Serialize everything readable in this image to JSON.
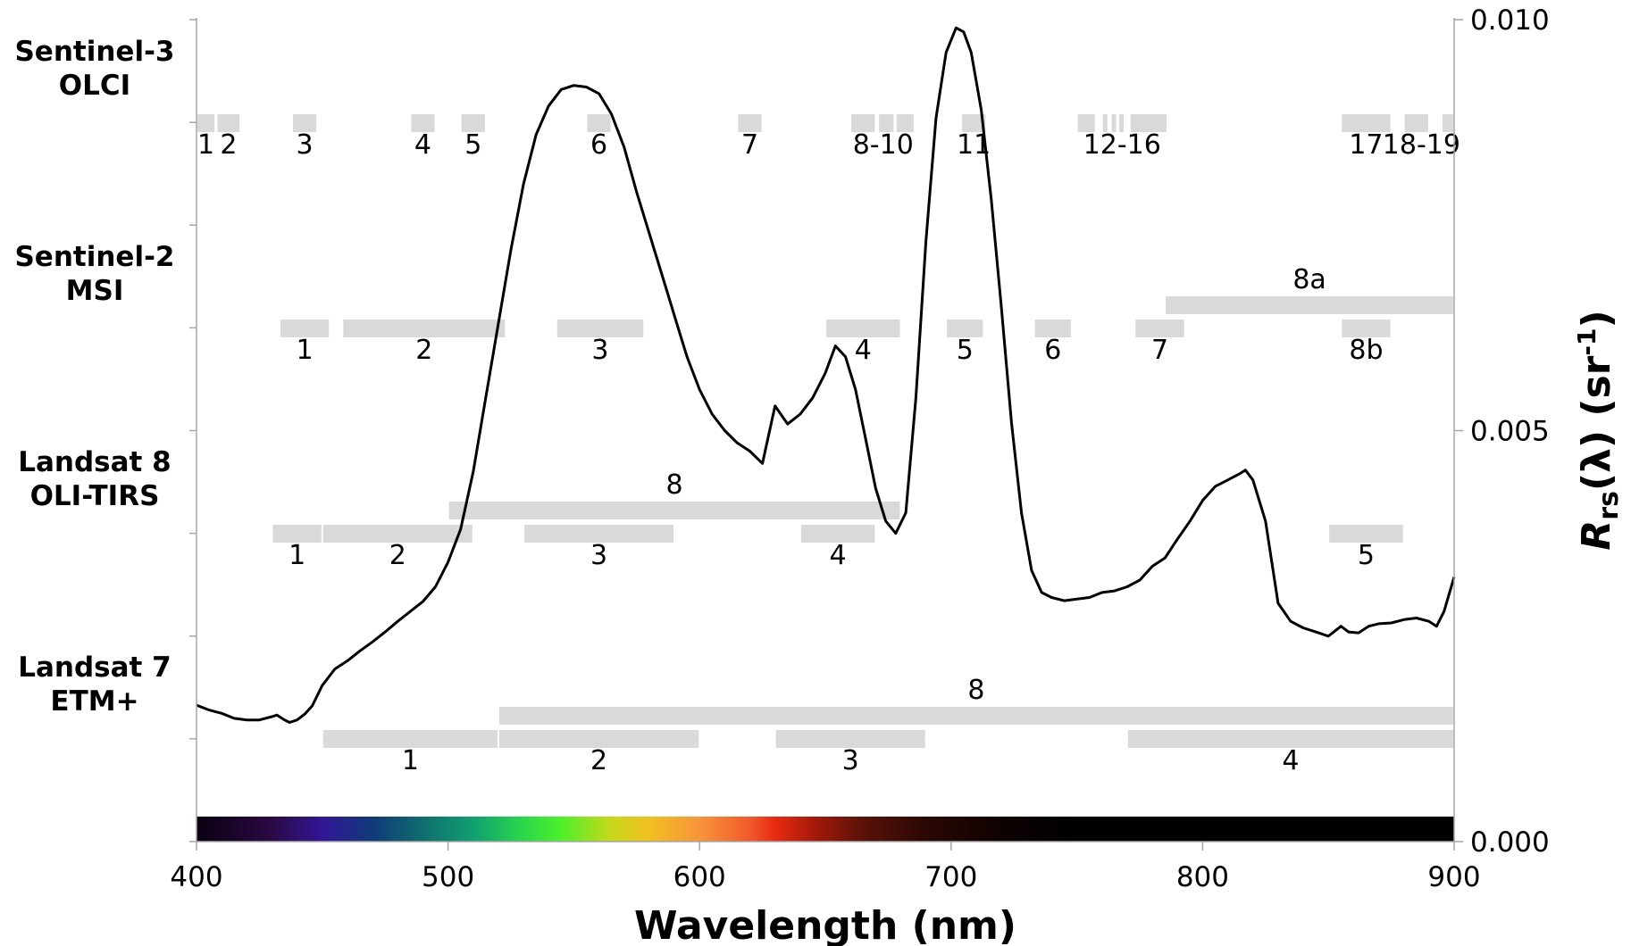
{
  "chart_data": {
    "type": "line",
    "title": "",
    "xlabel": "Wavelength (nm)",
    "ylabel_main": "R",
    "ylabel_sub": "rs",
    "ylabel_rest": "(λ) (sr",
    "ylabel_sup": "-1",
    "ylabel_end": ")",
    "xlim": [
      400,
      900
    ],
    "ylim": [
      0.0,
      0.01
    ],
    "x_ticks": [
      "400",
      "500",
      "600",
      "700",
      "800",
      "900"
    ],
    "y_ticks": [
      "0.000",
      "0.005",
      "0.010"
    ],
    "grid": false,
    "legend": "none",
    "series": [
      {
        "x": [
          400,
          405,
          410,
          415,
          420,
          425,
          430,
          432,
          435,
          437,
          440,
          443,
          446,
          450,
          455,
          460,
          465,
          470,
          475,
          480,
          485,
          490,
          495,
          500,
          505,
          510,
          515,
          520,
          525,
          530,
          535,
          540,
          545,
          550,
          555,
          560,
          565,
          570,
          575,
          580,
          585,
          590,
          595,
          600,
          605,
          610,
          615,
          620,
          625,
          630,
          635,
          640,
          645,
          650,
          654,
          658,
          662,
          666,
          670,
          674,
          678,
          682,
          686,
          690,
          694,
          698,
          702,
          705,
          708,
          712,
          716,
          720,
          724,
          728,
          732,
          736,
          740,
          745,
          750,
          755,
          760,
          765,
          770,
          775,
          780,
          785,
          790,
          795,
          800,
          805,
          810,
          815,
          817,
          820,
          825,
          830,
          835,
          840,
          845,
          850,
          855,
          858,
          862,
          866,
          870,
          875,
          880,
          885,
          890,
          893,
          896,
          900
        ],
        "y": [
          0.00166,
          0.0016,
          0.00156,
          0.0015,
          0.00148,
          0.00148,
          0.00152,
          0.00154,
          0.00148,
          0.00145,
          0.00148,
          0.00155,
          0.00165,
          0.0019,
          0.0021,
          0.0022,
          0.00232,
          0.00243,
          0.00255,
          0.00268,
          0.0028,
          0.00292,
          0.0031,
          0.0034,
          0.0038,
          0.0045,
          0.0054,
          0.0063,
          0.0072,
          0.008,
          0.0086,
          0.00895,
          0.00915,
          0.0092,
          0.00918,
          0.0091,
          0.00885,
          0.00845,
          0.0079,
          0.0074,
          0.0069,
          0.0064,
          0.0059,
          0.0055,
          0.0052,
          0.005,
          0.00485,
          0.00475,
          0.0046,
          0.0053,
          0.00508,
          0.0052,
          0.0054,
          0.0057,
          0.00603,
          0.0059,
          0.0055,
          0.0049,
          0.0043,
          0.0039,
          0.00375,
          0.004,
          0.0054,
          0.0073,
          0.0088,
          0.0096,
          0.0099,
          0.00985,
          0.0096,
          0.0089,
          0.0078,
          0.0065,
          0.0051,
          0.004,
          0.0033,
          0.00303,
          0.00297,
          0.00293,
          0.00295,
          0.00297,
          0.00303,
          0.00305,
          0.0031,
          0.00318,
          0.00335,
          0.00345,
          0.00368,
          0.0039,
          0.00415,
          0.00432,
          0.0044,
          0.00448,
          0.00452,
          0.0044,
          0.0039,
          0.0029,
          0.00268,
          0.0026,
          0.00255,
          0.0025,
          0.00262,
          0.00255,
          0.00254,
          0.00262,
          0.00265,
          0.00266,
          0.0027,
          0.00272,
          0.00268,
          0.00262,
          0.0028,
          0.00322
        ]
      }
    ],
    "sensors": [
      {
        "name_line1": "Sentinel-3",
        "name_line2": "OLCI",
        "bands": [
          {
            "label": "1",
            "range": [
              400,
              407.5
            ]
          },
          {
            "label": "2",
            "range": [
              408,
              417.5
            ]
          },
          {
            "label": "3",
            "range": [
              438,
              448
            ]
          },
          {
            "label": "4",
            "range": [
              485,
              495
            ]
          },
          {
            "label": "5",
            "range": [
              505,
              515
            ]
          },
          {
            "label": "6",
            "range": [
              555,
              565
            ]
          },
          {
            "label": "7",
            "range": [
              615,
              625
            ]
          },
          {
            "label": "",
            "range": [
              660,
              670
            ]
          },
          {
            "label": "",
            "range": [
              671,
              677.5
            ]
          },
          {
            "label": "",
            "range": [
              678,
              685.5
            ]
          },
          {
            "label": "11",
            "range": [
              704,
              714
            ]
          },
          {
            "label": "",
            "range": [
              750,
              757.5
            ]
          },
          {
            "label": "",
            "range": [
              760,
              762.5
            ]
          },
          {
            "label": "",
            "range": [
              763.5,
              766
            ]
          },
          {
            "label": "",
            "range": [
              766.5,
              769
            ]
          },
          {
            "label": "",
            "range": [
              771,
              786
            ]
          },
          {
            "label": "17",
            "range": [
              855,
              875
            ]
          },
          {
            "label": "",
            "range": [
              880,
              890
            ]
          },
          {
            "label": "",
            "range": [
              895,
              905
            ]
          }
        ],
        "group_labels": [
          {
            "label": "8-10",
            "at": 673
          },
          {
            "label": "12-16",
            "at": 768
          },
          {
            "label": "18-19",
            "at": 887
          }
        ]
      },
      {
        "name_line1": "Sentinel-2",
        "name_line2": "MSI",
        "bands": [
          {
            "label": "1",
            "range": [
              433,
              453
            ]
          },
          {
            "label": "2",
            "range": [
              458,
              523
            ]
          },
          {
            "label": "3",
            "range": [
              543,
              578
            ]
          },
          {
            "label": "4",
            "range": [
              650,
              680
            ]
          },
          {
            "label": "5",
            "range": [
              698,
              713
            ]
          },
          {
            "label": "6",
            "range": [
              733,
              748
            ]
          },
          {
            "label": "7",
            "range": [
              773,
              793
            ]
          },
          {
            "label": "8a",
            "range": [
              785,
              900
            ],
            "row": "upper"
          },
          {
            "label": "8b",
            "range": [
              855,
              875
            ]
          }
        ]
      },
      {
        "name_line1": "Landsat 8",
        "name_line2": "OLI-TIRS",
        "bands": [
          {
            "label": "1",
            "range": [
              430,
              450
            ]
          },
          {
            "label": "2",
            "range": [
              450,
              510
            ]
          },
          {
            "label": "3",
            "range": [
              530,
              590
            ]
          },
          {
            "label": "4",
            "range": [
              640,
              670
            ]
          },
          {
            "label": "8",
            "range": [
              500,
              680
            ],
            "row": "upper"
          },
          {
            "label": "5",
            "range": [
              850,
              880
            ]
          }
        ]
      },
      {
        "name_line1": "Landsat 7",
        "name_line2": "ETM+",
        "bands": [
          {
            "label": "1",
            "range": [
              450,
              520
            ]
          },
          {
            "label": "2",
            "range": [
              520,
              600
            ]
          },
          {
            "label": "3",
            "range": [
              630,
              690
            ]
          },
          {
            "label": "4",
            "range": [
              770,
              900
            ]
          },
          {
            "label": "8",
            "range": [
              520,
              900
            ],
            "row": "upper"
          }
        ]
      }
    ],
    "colorbar": {
      "range": [
        400,
        900
      ],
      "stops": [
        {
          "at": 400,
          "color": "#0a0010"
        },
        {
          "at": 430,
          "color": "#2a0a44"
        },
        {
          "at": 450,
          "color": "#321696"
        },
        {
          "at": 470,
          "color": "#103a7a"
        },
        {
          "at": 490,
          "color": "#0f6e6e"
        },
        {
          "at": 510,
          "color": "#10a070"
        },
        {
          "at": 530,
          "color": "#2ad84a"
        },
        {
          "at": 545,
          "color": "#4cf02a"
        },
        {
          "at": 565,
          "color": "#c8d81a"
        },
        {
          "at": 580,
          "color": "#f0c020"
        },
        {
          "at": 600,
          "color": "#f8943a"
        },
        {
          "at": 620,
          "color": "#f05a2a"
        },
        {
          "at": 630,
          "color": "#e82a12"
        },
        {
          "at": 645,
          "color": "#a81a0a"
        },
        {
          "at": 665,
          "color": "#5a1208"
        },
        {
          "at": 690,
          "color": "#2a0804"
        },
        {
          "at": 720,
          "color": "#0e0202"
        },
        {
          "at": 750,
          "color": "#000000"
        },
        {
          "at": 900,
          "color": "#000000"
        }
      ]
    }
  }
}
